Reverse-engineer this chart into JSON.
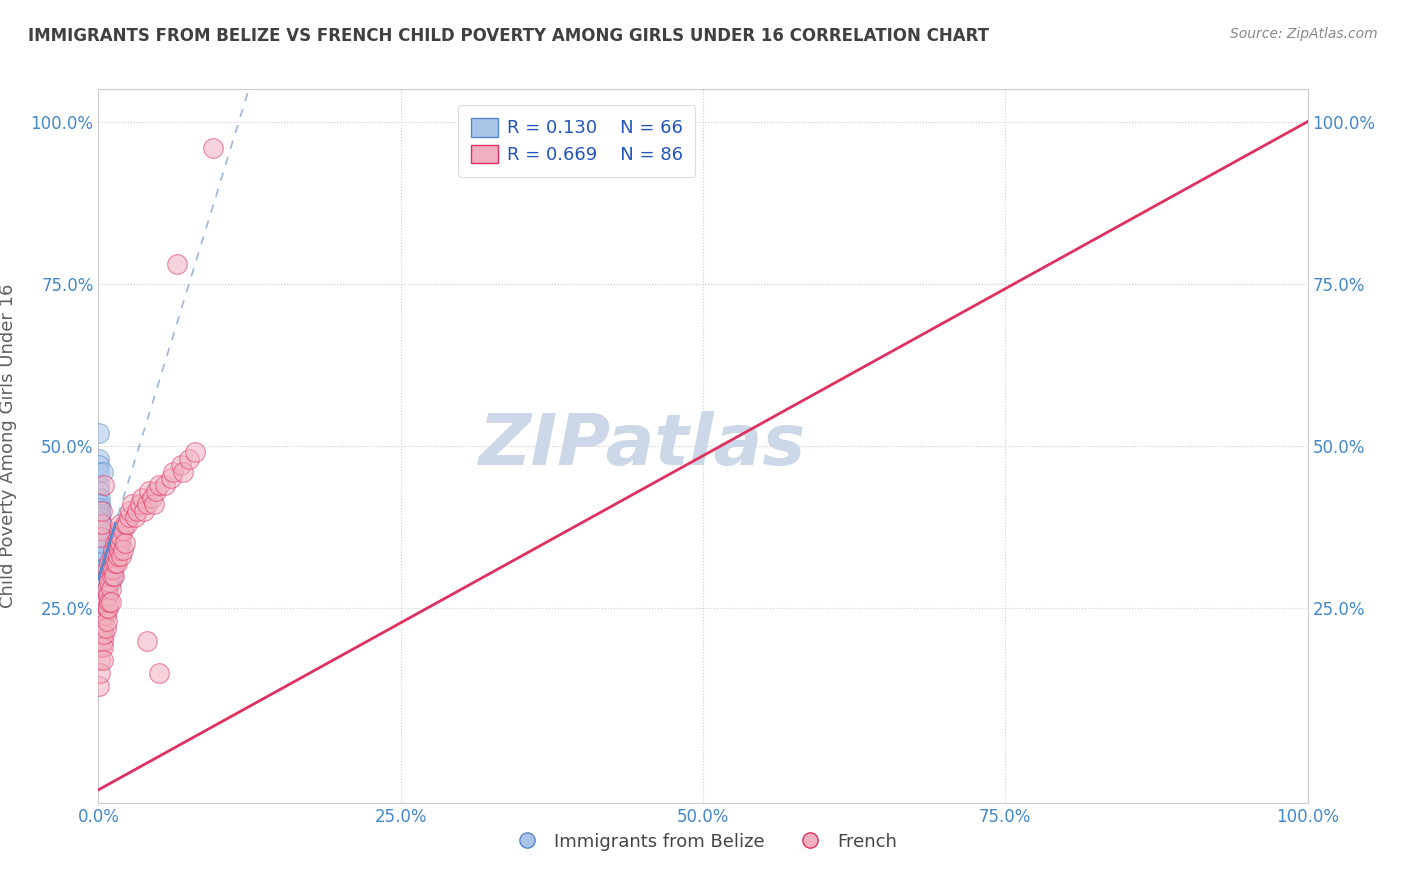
{
  "title": "IMMIGRANTS FROM BELIZE VS FRENCH CHILD POVERTY AMONG GIRLS UNDER 16 CORRELATION CHART",
  "source": "Source: ZipAtlas.com",
  "ylabel": "Child Poverty Among Girls Under 16",
  "watermark": "ZIPatlas",
  "blue_label": "Immigrants from Belize",
  "pink_label": "French",
  "blue_R": 0.13,
  "blue_N": 66,
  "pink_R": 0.669,
  "pink_N": 86,
  "blue_color": "#aac4e8",
  "pink_color": "#f0b0c0",
  "blue_line_color": "#5588cc",
  "pink_line_color": "#e03060",
  "blue_scatter": [
    [
      0.0005,
      0.52
    ],
    [
      0.0005,
      0.48
    ],
    [
      0.0005,
      0.47
    ],
    [
      0.0008,
      0.46
    ],
    [
      0.0008,
      0.44
    ],
    [
      0.0008,
      0.43
    ],
    [
      0.001,
      0.42
    ],
    [
      0.001,
      0.41
    ],
    [
      0.001,
      0.405
    ],
    [
      0.001,
      0.4
    ],
    [
      0.001,
      0.395
    ],
    [
      0.001,
      0.39
    ],
    [
      0.001,
      0.385
    ],
    [
      0.001,
      0.38
    ],
    [
      0.001,
      0.375
    ],
    [
      0.001,
      0.37
    ],
    [
      0.001,
      0.365
    ],
    [
      0.001,
      0.36
    ],
    [
      0.001,
      0.355
    ],
    [
      0.001,
      0.35
    ],
    [
      0.001,
      0.345
    ],
    [
      0.001,
      0.34
    ],
    [
      0.001,
      0.335
    ],
    [
      0.001,
      0.33
    ],
    [
      0.001,
      0.325
    ],
    [
      0.001,
      0.32
    ],
    [
      0.001,
      0.315
    ],
    [
      0.001,
      0.31
    ],
    [
      0.001,
      0.305
    ],
    [
      0.001,
      0.3
    ],
    [
      0.001,
      0.295
    ],
    [
      0.001,
      0.29
    ],
    [
      0.001,
      0.285
    ],
    [
      0.001,
      0.28
    ],
    [
      0.0015,
      0.35
    ],
    [
      0.0015,
      0.33
    ],
    [
      0.0015,
      0.31
    ],
    [
      0.0015,
      0.29
    ],
    [
      0.0015,
      0.27
    ],
    [
      0.0015,
      0.26
    ],
    [
      0.002,
      0.38
    ],
    [
      0.002,
      0.34
    ],
    [
      0.002,
      0.31
    ],
    [
      0.002,
      0.29
    ],
    [
      0.002,
      0.27
    ],
    [
      0.002,
      0.26
    ],
    [
      0.002,
      0.25
    ],
    [
      0.002,
      0.24
    ],
    [
      0.002,
      0.23
    ],
    [
      0.003,
      0.35
    ],
    [
      0.003,
      0.3
    ],
    [
      0.003,
      0.28
    ],
    [
      0.003,
      0.26
    ],
    [
      0.003,
      0.24
    ],
    [
      0.004,
      0.46
    ],
    [
      0.004,
      0.3
    ],
    [
      0.004,
      0.27
    ],
    [
      0.004,
      0.24
    ],
    [
      0.005,
      0.31
    ],
    [
      0.005,
      0.28
    ],
    [
      0.006,
      0.29
    ],
    [
      0.007,
      0.28
    ],
    [
      0.008,
      0.31
    ],
    [
      0.009,
      0.3
    ],
    [
      0.01,
      0.29
    ],
    [
      0.012,
      0.3
    ]
  ],
  "pink_scatter": [
    [
      0.0005,
      0.13
    ],
    [
      0.001,
      0.17
    ],
    [
      0.001,
      0.15
    ],
    [
      0.0015,
      0.2
    ],
    [
      0.002,
      0.22
    ],
    [
      0.002,
      0.19
    ],
    [
      0.002,
      0.37
    ],
    [
      0.002,
      0.36
    ],
    [
      0.003,
      0.24
    ],
    [
      0.003,
      0.21
    ],
    [
      0.003,
      0.38
    ],
    [
      0.003,
      0.4
    ],
    [
      0.004,
      0.25
    ],
    [
      0.004,
      0.22
    ],
    [
      0.004,
      0.2
    ],
    [
      0.004,
      0.19
    ],
    [
      0.004,
      0.17
    ],
    [
      0.005,
      0.27
    ],
    [
      0.005,
      0.24
    ],
    [
      0.005,
      0.21
    ],
    [
      0.005,
      0.44
    ],
    [
      0.006,
      0.29
    ],
    [
      0.006,
      0.26
    ],
    [
      0.006,
      0.24
    ],
    [
      0.006,
      0.22
    ],
    [
      0.007,
      0.31
    ],
    [
      0.007,
      0.28
    ],
    [
      0.007,
      0.25
    ],
    [
      0.007,
      0.23
    ],
    [
      0.008,
      0.3
    ],
    [
      0.008,
      0.27
    ],
    [
      0.008,
      0.25
    ],
    [
      0.009,
      0.32
    ],
    [
      0.009,
      0.29
    ],
    [
      0.009,
      0.26
    ],
    [
      0.01,
      0.31
    ],
    [
      0.01,
      0.28
    ],
    [
      0.01,
      0.26
    ],
    [
      0.011,
      0.33
    ],
    [
      0.011,
      0.3
    ],
    [
      0.012,
      0.34
    ],
    [
      0.012,
      0.31
    ],
    [
      0.013,
      0.33
    ],
    [
      0.013,
      0.3
    ],
    [
      0.014,
      0.35
    ],
    [
      0.014,
      0.32
    ],
    [
      0.015,
      0.35
    ],
    [
      0.015,
      0.32
    ],
    [
      0.016,
      0.36
    ],
    [
      0.016,
      0.33
    ],
    [
      0.017,
      0.37
    ],
    [
      0.017,
      0.34
    ],
    [
      0.018,
      0.38
    ],
    [
      0.018,
      0.35
    ],
    [
      0.019,
      0.36
    ],
    [
      0.019,
      0.33
    ],
    [
      0.02,
      0.37
    ],
    [
      0.02,
      0.34
    ],
    [
      0.022,
      0.38
    ],
    [
      0.022,
      0.35
    ],
    [
      0.024,
      0.38
    ],
    [
      0.025,
      0.39
    ],
    [
      0.026,
      0.4
    ],
    [
      0.028,
      0.41
    ],
    [
      0.03,
      0.39
    ],
    [
      0.032,
      0.4
    ],
    [
      0.034,
      0.41
    ],
    [
      0.036,
      0.42
    ],
    [
      0.038,
      0.4
    ],
    [
      0.04,
      0.41
    ],
    [
      0.04,
      0.2
    ],
    [
      0.042,
      0.43
    ],
    [
      0.044,
      0.42
    ],
    [
      0.046,
      0.41
    ],
    [
      0.048,
      0.43
    ],
    [
      0.05,
      0.15
    ],
    [
      0.05,
      0.44
    ],
    [
      0.055,
      0.44
    ],
    [
      0.06,
      0.45
    ],
    [
      0.062,
      0.46
    ],
    [
      0.065,
      0.78
    ],
    [
      0.068,
      0.47
    ],
    [
      0.07,
      0.46
    ],
    [
      0.075,
      0.48
    ],
    [
      0.08,
      0.49
    ],
    [
      0.095,
      0.96
    ]
  ],
  "blue_line_x0": 0.0,
  "blue_line_x1": 0.014,
  "blue_line_y0": 0.295,
  "blue_line_y1": 0.38,
  "pink_line_x0": 0.0,
  "pink_line_x1": 1.0,
  "pink_line_y0": -0.03,
  "pink_line_y1": 1.0,
  "xlim": [
    0.0,
    1.0
  ],
  "ylim": [
    -0.05,
    1.05
  ],
  "xticks": [
    0.0,
    0.25,
    0.5,
    0.75,
    1.0
  ],
  "yticks": [
    0.0,
    0.25,
    0.5,
    0.75,
    1.0
  ],
  "xticklabels": [
    "0.0%",
    "25.0%",
    "50.0%",
    "75.0%",
    "100.0%"
  ],
  "yticklabels": [
    "",
    "25.0%",
    "50.0%",
    "75.0%",
    "100.0%"
  ],
  "background_color": "#ffffff",
  "grid_color": "#cccccc",
  "title_color": "#404040",
  "axis_label_color": "#606060",
  "tick_label_color": "#4488cc",
  "watermark_color": "#ccd8e8",
  "legend_text_color": "#2255bb"
}
